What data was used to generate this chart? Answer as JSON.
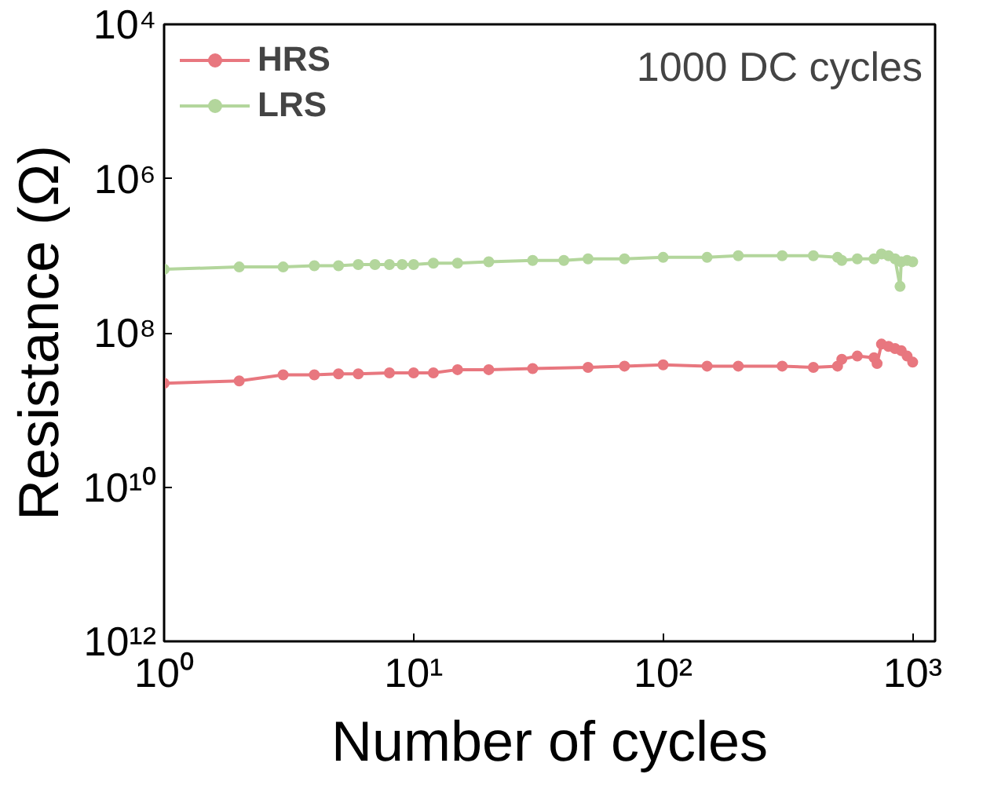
{
  "chart_data": {
    "type": "line",
    "xlabel": "Number of cycles",
    "ylabel": "Resistance (Ω)",
    "annotations": [
      "1000 DC cycles"
    ],
    "log": "xy",
    "grid": false,
    "legend": "top left",
    "marker": "circle",
    "line_style": "solid",
    "xlim": [
      1,
      1230
    ],
    "ylim": [
      1000000000000.0,
      10000.0
    ],
    "xticks": [
      {
        "value": 1,
        "label": "10⁰"
      },
      {
        "value": 10,
        "label": "10¹"
      },
      {
        "value": 100,
        "label": "10²"
      },
      {
        "value": 1000,
        "label": "10³"
      }
    ],
    "yticks": [
      {
        "value": 10000.0,
        "label": "10⁴"
      },
      {
        "value": 1000000.0,
        "label": "10⁶"
      },
      {
        "value": 100000000.0,
        "label": "10⁸"
      },
      {
        "value": 10000000000.0,
        "label": "10¹⁰"
      },
      {
        "value": 1000000000000.0,
        "label": "10¹²"
      }
    ],
    "series": [
      {
        "name": "HRS",
        "color": "#e8777f",
        "x": [
          1,
          2,
          3,
          4,
          5,
          6,
          8,
          10,
          12,
          15,
          20,
          30,
          50,
          70,
          100,
          150,
          200,
          300,
          400,
          500,
          520,
          600,
          700,
          720,
          750,
          800,
          850,
          900,
          950,
          1000
        ],
        "values": [
          450000000.0,
          420000000.0,
          350000000.0,
          350000000.0,
          340000000.0,
          340000000.0,
          330000000.0,
          330000000.0,
          330000000.0,
          300000000.0,
          300000000.0,
          290000000.0,
          280000000.0,
          270000000.0,
          260000000.0,
          270000000.0,
          270000000.0,
          270000000.0,
          280000000.0,
          270000000.0,
          220000000.0,
          200000000.0,
          210000000.0,
          250000000.0,
          140000000.0,
          150000000.0,
          160000000.0,
          170000000.0,
          200000000.0,
          240000000.0
        ]
      },
      {
        "name": "LRS",
        "color": "#b3d69c",
        "x": [
          1,
          2,
          3,
          4,
          5,
          6,
          7,
          8,
          9,
          10,
          12,
          15,
          20,
          30,
          40,
          50,
          70,
          100,
          150,
          200,
          300,
          400,
          500,
          520,
          600,
          700,
          750,
          800,
          850,
          890,
          900,
          950,
          1000
        ],
        "values": [
          15000000.0,
          14000000.0,
          14000000.0,
          13500000.0,
          13500000.0,
          13000000.0,
          13000000.0,
          13000000.0,
          13000000.0,
          13000000.0,
          12500000.0,
          12500000.0,
          12000000.0,
          11500000.0,
          11500000.0,
          11000000.0,
          11000000.0,
          10500000.0,
          10500000.0,
          10000000.0,
          10000000.0,
          10000000.0,
          10500000.0,
          11500000.0,
          11000000.0,
          11000000.0,
          9500000.0,
          10000000.0,
          11000000.0,
          25000000.0,
          12000000.0,
          11500000.0,
          12000000.0
        ]
      }
    ]
  }
}
